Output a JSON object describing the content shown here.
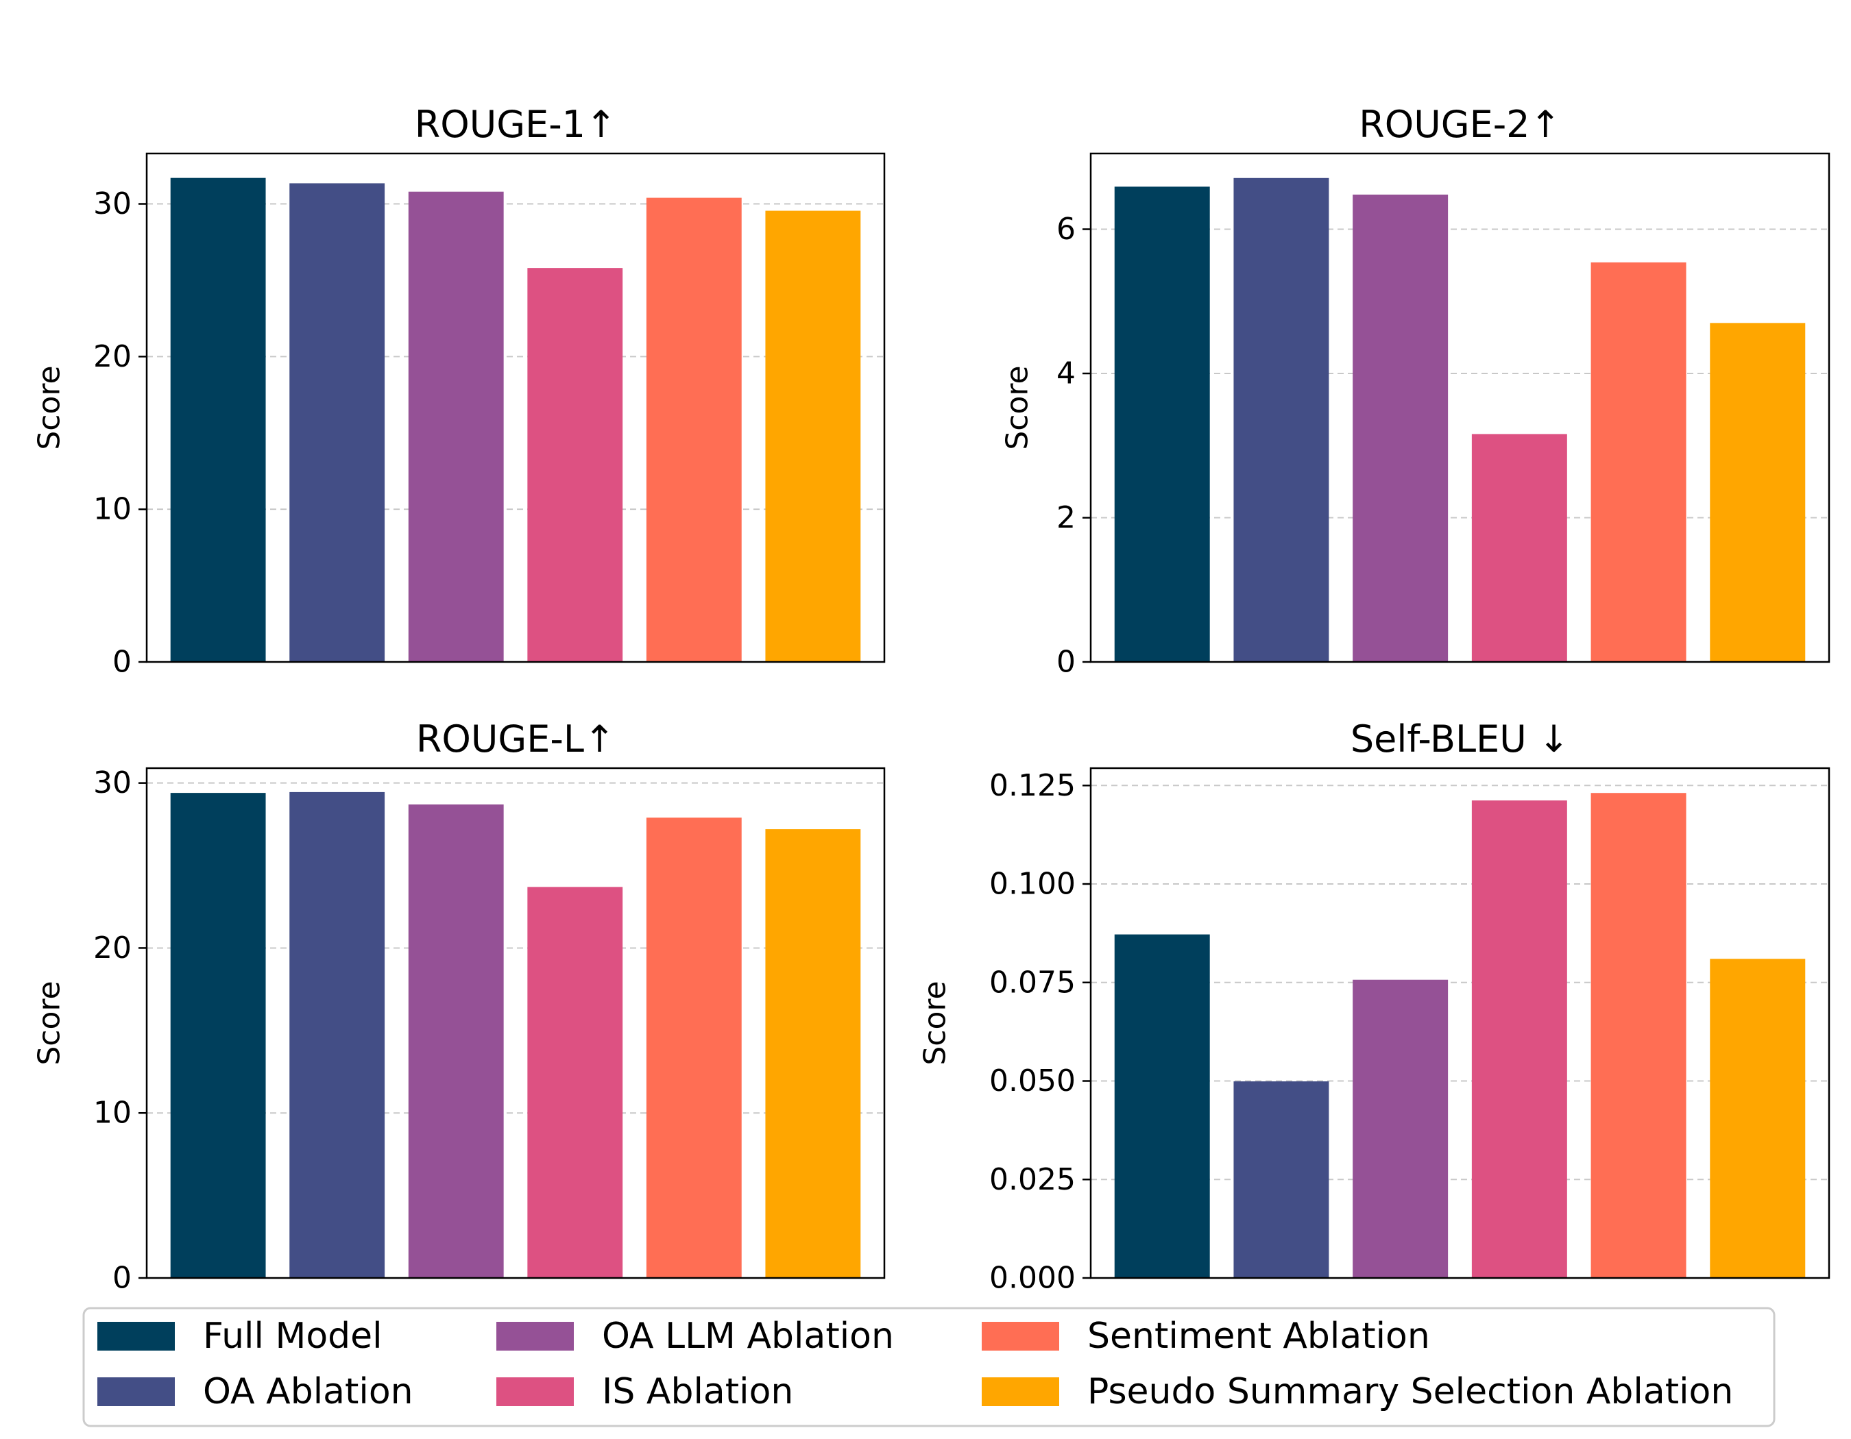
{
  "legend": {
    "items": [
      {
        "name": "Full Model",
        "color": "#003f5c"
      },
      {
        "name": "OA Ablation",
        "color": "#434e86"
      },
      {
        "name": "OA LLM Ablation",
        "color": "#955196"
      },
      {
        "name": "IS Ablation",
        "color": "#dd5182"
      },
      {
        "name": "Sentiment Ablation",
        "color": "#ff6e54"
      },
      {
        "name": "Pseudo Summary Selection Ablation",
        "color": "#ffa600"
      }
    ]
  },
  "chart_data": [
    {
      "type": "bar",
      "title": "ROUGE-1↑",
      "ylabel": "Score",
      "categories": [
        "Full Model",
        "OA Ablation",
        "OA LLM Ablation",
        "IS Ablation",
        "Sentiment Ablation",
        "Pseudo Summary Selection Ablation"
      ],
      "values": [
        31.7,
        31.35,
        30.8,
        25.8,
        30.4,
        29.55
      ],
      "ylim": [
        0,
        33.3
      ],
      "yticks": [
        0,
        10,
        20,
        30
      ],
      "ytick_labels": [
        "0",
        "10",
        "20",
        "30"
      ],
      "grid": "y-dashed"
    },
    {
      "type": "bar",
      "title": "ROUGE-2↑",
      "ylabel": "Score",
      "categories": [
        "Full Model",
        "OA Ablation",
        "OA LLM Ablation",
        "IS Ablation",
        "Sentiment Ablation",
        "Pseudo Summary Selection Ablation"
      ],
      "values": [
        6.59,
        6.71,
        6.48,
        3.16,
        5.54,
        4.7
      ],
      "ylim": [
        0,
        7.05
      ],
      "yticks": [
        0,
        2,
        4,
        6
      ],
      "ytick_labels": [
        "0",
        "2",
        "4",
        "6"
      ],
      "grid": "y-dashed"
    },
    {
      "type": "bar",
      "title": "ROUGE-L↑",
      "ylabel": "Score",
      "categories": [
        "Full Model",
        "OA Ablation",
        "OA LLM Ablation",
        "IS Ablation",
        "Sentiment Ablation",
        "Pseudo Summary Selection Ablation"
      ],
      "values": [
        29.4,
        29.45,
        28.7,
        23.7,
        27.9,
        27.2
      ],
      "ylim": [
        0,
        30.9
      ],
      "yticks": [
        0,
        10,
        20,
        30
      ],
      "ytick_labels": [
        "0",
        "10",
        "20",
        "30"
      ],
      "grid": "y-dashed"
    },
    {
      "type": "bar",
      "title": "Self-BLEU ↓",
      "ylabel": "Score",
      "categories": [
        "Full Model",
        "OA Ablation",
        "OA LLM Ablation",
        "IS Ablation",
        "Sentiment Ablation",
        "Pseudo Summary Selection Ablation"
      ],
      "values": [
        0.0872,
        0.0499,
        0.0757,
        0.1212,
        0.1231,
        0.081
      ],
      "ylim": [
        0,
        0.1294
      ],
      "yticks": [
        0,
        0.025,
        0.05,
        0.075,
        0.1,
        0.125
      ],
      "ytick_labels": [
        "0.000",
        "0.025",
        "0.050",
        "0.075",
        "0.100",
        "0.125"
      ],
      "grid": "y-dashed"
    }
  ]
}
